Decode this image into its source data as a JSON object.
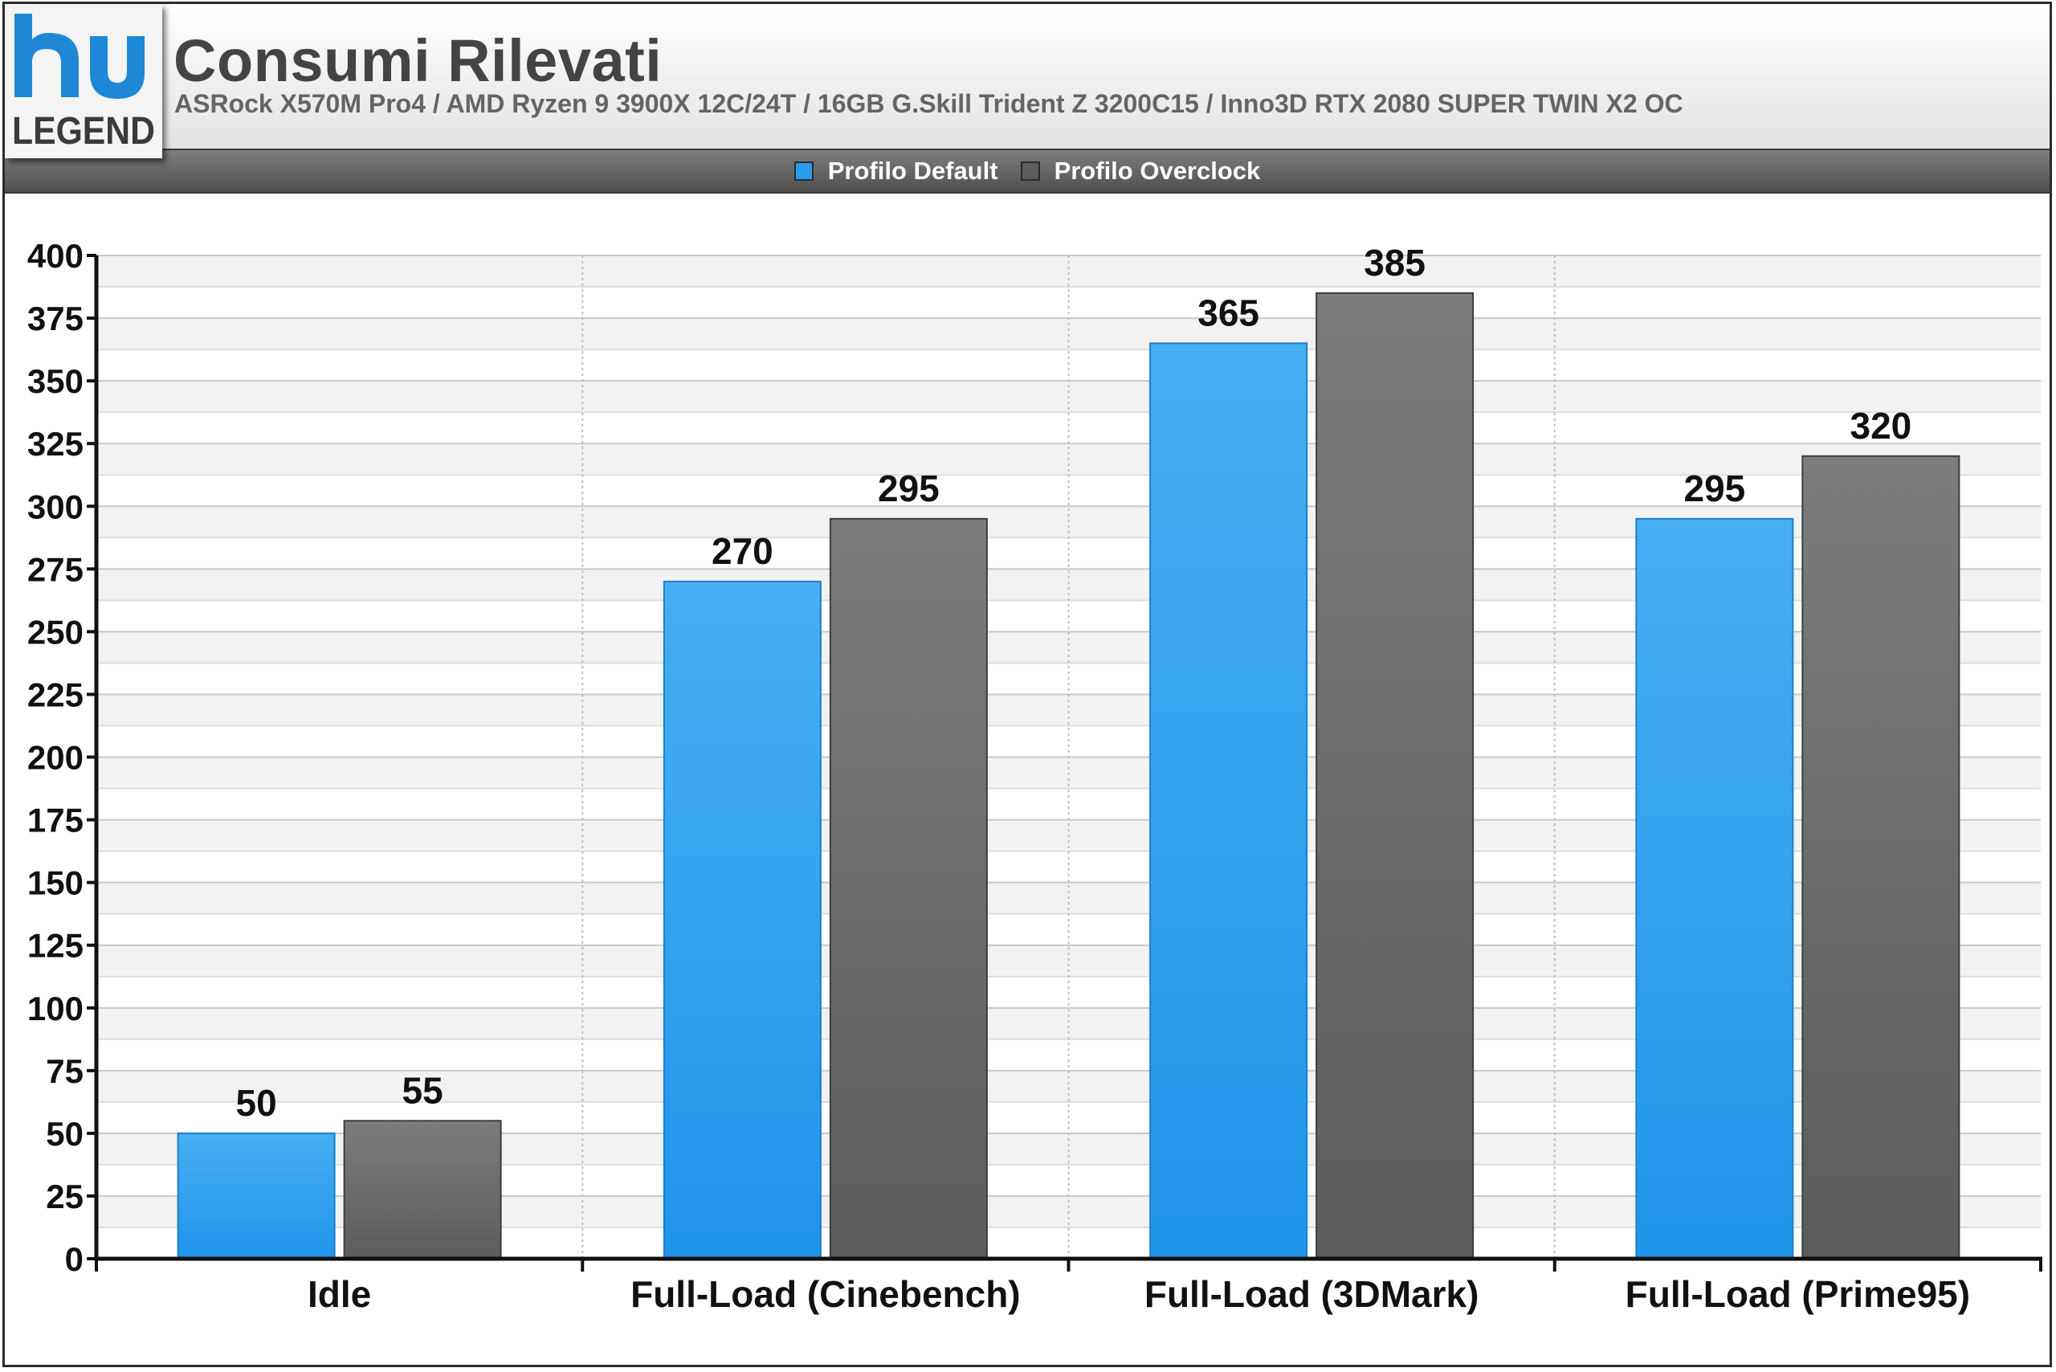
{
  "header": {
    "logo_top": "hu",
    "logo_bottom": "LEGEND",
    "title": "Consumi Rilevati",
    "subtitle": "ASRock X570M Pro4 / AMD Ryzen 9 3900X 12C/24T / 16GB G.Skill Trident Z 3200C15 / Inno3D RTX 2080 SUPER TWIN X2 OC"
  },
  "colors": {
    "default_series": "#2b9cec",
    "overclock_series": "#6e6e6e",
    "logo_accent": "#1e88d6",
    "title": "#444444"
  },
  "chart_data": {
    "type": "bar",
    "categories": [
      "Idle",
      "Full-Load (Cinebench)",
      "Full-Load (3DMark)",
      "Full-Load (Prime95)"
    ],
    "series": [
      {
        "name": "Profilo Default",
        "values": [
          50,
          270,
          365,
          295
        ],
        "color": "#2b9cec"
      },
      {
        "name": "Profilo Overclock",
        "values": [
          55,
          295,
          385,
          320
        ],
        "color": "#6e6e6e"
      }
    ],
    "ylim": [
      0,
      400
    ],
    "yticks": [
      0,
      25,
      50,
      75,
      100,
      125,
      150,
      175,
      200,
      225,
      250,
      275,
      300,
      325,
      350,
      375,
      400
    ],
    "data_labels": true,
    "grid": true,
    "legend_position": "top-center"
  }
}
